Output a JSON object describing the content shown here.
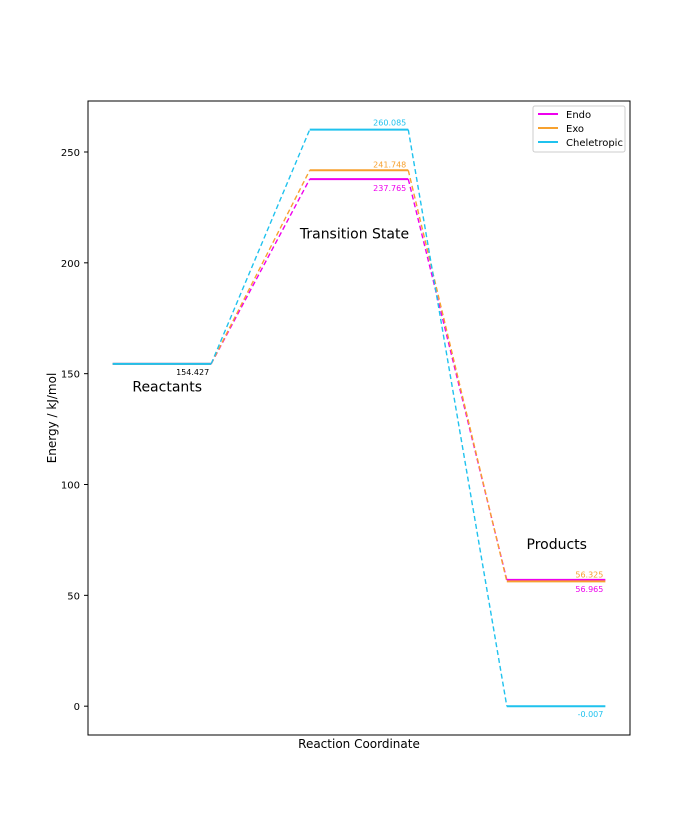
{
  "chart_data": {
    "type": "line",
    "title": "",
    "xlabel": "Reaction Coordinate",
    "ylabel": "Energy / kJ/mol",
    "ylim": [
      -13,
      273
    ],
    "xlim": [
      0.75,
      6.25
    ],
    "yticks": [
      0,
      50,
      100,
      150,
      200,
      250
    ],
    "xticks": [],
    "grid": false,
    "legend_position": "top-right",
    "stages": [
      {
        "label": "Reactants",
        "x_start": 1,
        "x_end": 2,
        "label_y": 142,
        "label_x_start": 1.2
      },
      {
        "label": "Transition State",
        "x_start": 3,
        "x_end": 4,
        "label_y": 211,
        "label_x_start": 2.9
      },
      {
        "label": "Products",
        "x_start": 5,
        "x_end": 6,
        "label_y": 71,
        "label_x_start": 5.2
      }
    ],
    "series": [
      {
        "name": "Endo",
        "color": "#ee00ee",
        "values": [
          154.427,
          237.765,
          56.965
        ],
        "labels": [
          "",
          "237.765",
          "56.965"
        ]
      },
      {
        "name": "Exo",
        "color": "#f7a12f",
        "values": [
          154.427,
          241.748,
          56.325
        ],
        "labels": [
          "",
          "241.748",
          "56.325"
        ]
      },
      {
        "name": "Cheletropic",
        "color": "#1fc2ee",
        "values": [
          154.427,
          260.085,
          -0.007
        ],
        "labels": [
          "",
          "260.085",
          "-0.007"
        ]
      }
    ],
    "shared_labels": [
      {
        "text": "154.427",
        "value": 154.427,
        "color": "#000000"
      }
    ]
  }
}
